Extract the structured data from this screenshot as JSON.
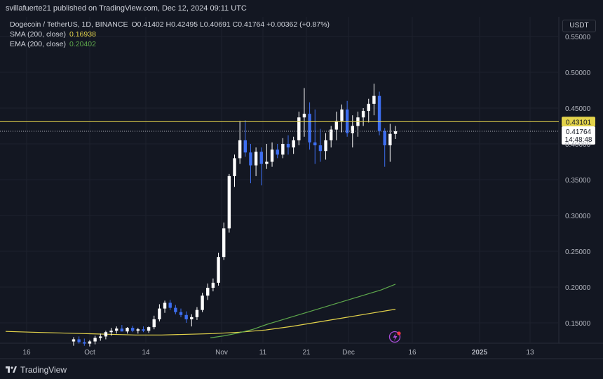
{
  "header": {
    "publish_text": "svillafuerte21 published on TradingView.com, Dec 12, 2024 09:11 UTC"
  },
  "legend": {
    "symbol": "Dogecoin / TetherUS, 1D, BINANCE",
    "ohlc": "O0.41402 H0.42495 L0.40691 C0.41764 +0.00362 (+0.87%)",
    "sma_label": "SMA (200, close)",
    "sma_value": "0.16938",
    "ema_label": "EMA (200, close)",
    "ema_value": "0.20402"
  },
  "currency_button": "USDT",
  "footer": {
    "brand": "TradingView"
  },
  "colors": {
    "background": "#131722",
    "up": "#ffffff",
    "down": "#3d6ef0",
    "sma": "#e3d34b",
    "ema": "#5ea84c",
    "level_line": "#e3d34b"
  },
  "chart_data": {
    "type": "candlestick",
    "ylim": [
      0.12,
      0.56
    ],
    "y_ticks": [
      0.15,
      0.2,
      0.25,
      0.3,
      0.35,
      0.4,
      0.45,
      0.5,
      0.55
    ],
    "y_tick_labels": [
      "0.15000",
      "0.20000",
      "0.25000",
      "0.30000",
      "0.35000",
      "0.40000",
      "0.45000",
      "0.50000",
      "0.55000"
    ],
    "x_tick_labels": [
      "16",
      "Oct",
      "14",
      "Nov",
      "11",
      "21",
      "Dec",
      "16",
      "2025",
      "13"
    ],
    "horizontal_level": {
      "value": 0.43101,
      "label": "0.43101"
    },
    "last_price": {
      "value": 0.41764,
      "label": "0.41764",
      "countdown": "14:48:48"
    },
    "candles": [
      {
        "o": 0.124,
        "h": 0.13,
        "l": 0.118,
        "c": 0.127
      },
      {
        "o": 0.127,
        "h": 0.131,
        "l": 0.121,
        "c": 0.123
      },
      {
        "o": 0.123,
        "h": 0.128,
        "l": 0.118,
        "c": 0.121
      },
      {
        "o": 0.121,
        "h": 0.126,
        "l": 0.117,
        "c": 0.124
      },
      {
        "o": 0.124,
        "h": 0.132,
        "l": 0.12,
        "c": 0.129
      },
      {
        "o": 0.129,
        "h": 0.135,
        "l": 0.125,
        "c": 0.131
      },
      {
        "o": 0.131,
        "h": 0.139,
        "l": 0.127,
        "c": 0.137
      },
      {
        "o": 0.137,
        "h": 0.143,
        "l": 0.132,
        "c": 0.139
      },
      {
        "o": 0.139,
        "h": 0.145,
        "l": 0.135,
        "c": 0.142
      },
      {
        "o": 0.142,
        "h": 0.147,
        "l": 0.138,
        "c": 0.138
      },
      {
        "o": 0.138,
        "h": 0.144,
        "l": 0.135,
        "c": 0.143
      },
      {
        "o": 0.143,
        "h": 0.146,
        "l": 0.137,
        "c": 0.139
      },
      {
        "o": 0.139,
        "h": 0.143,
        "l": 0.135,
        "c": 0.141
      },
      {
        "o": 0.141,
        "h": 0.145,
        "l": 0.137,
        "c": 0.139
      },
      {
        "o": 0.139,
        "h": 0.145,
        "l": 0.136,
        "c": 0.144
      },
      {
        "o": 0.144,
        "h": 0.16,
        "l": 0.141,
        "c": 0.155
      },
      {
        "o": 0.155,
        "h": 0.176,
        "l": 0.152,
        "c": 0.17
      },
      {
        "o": 0.17,
        "h": 0.181,
        "l": 0.164,
        "c": 0.178
      },
      {
        "o": 0.178,
        "h": 0.182,
        "l": 0.168,
        "c": 0.171
      },
      {
        "o": 0.171,
        "h": 0.175,
        "l": 0.162,
        "c": 0.165
      },
      {
        "o": 0.165,
        "h": 0.17,
        "l": 0.158,
        "c": 0.161
      },
      {
        "o": 0.161,
        "h": 0.166,
        "l": 0.15,
        "c": 0.155
      },
      {
        "o": 0.155,
        "h": 0.162,
        "l": 0.145,
        "c": 0.158
      },
      {
        "o": 0.158,
        "h": 0.172,
        "l": 0.154,
        "c": 0.168
      },
      {
        "o": 0.168,
        "h": 0.192,
        "l": 0.165,
        "c": 0.188
      },
      {
        "o": 0.188,
        "h": 0.205,
        "l": 0.182,
        "c": 0.199
      },
      {
        "o": 0.199,
        "h": 0.212,
        "l": 0.194,
        "c": 0.206
      },
      {
        "o": 0.206,
        "h": 0.248,
        "l": 0.202,
        "c": 0.242
      },
      {
        "o": 0.242,
        "h": 0.29,
        "l": 0.238,
        "c": 0.282
      },
      {
        "o": 0.282,
        "h": 0.358,
        "l": 0.276,
        "c": 0.355
      },
      {
        "o": 0.355,
        "h": 0.385,
        "l": 0.34,
        "c": 0.38
      },
      {
        "o": 0.38,
        "h": 0.432,
        "l": 0.372,
        "c": 0.405
      },
      {
        "o": 0.405,
        "h": 0.433,
        "l": 0.382,
        "c": 0.388
      },
      {
        "o": 0.388,
        "h": 0.4,
        "l": 0.345,
        "c": 0.37
      },
      {
        "o": 0.37,
        "h": 0.395,
        "l": 0.355,
        "c": 0.389
      },
      {
        "o": 0.389,
        "h": 0.395,
        "l": 0.342,
        "c": 0.372
      },
      {
        "o": 0.372,
        "h": 0.4,
        "l": 0.365,
        "c": 0.375
      },
      {
        "o": 0.375,
        "h": 0.402,
        "l": 0.368,
        "c": 0.392
      },
      {
        "o": 0.392,
        "h": 0.4,
        "l": 0.38,
        "c": 0.385
      },
      {
        "o": 0.385,
        "h": 0.408,
        "l": 0.38,
        "c": 0.4
      },
      {
        "o": 0.4,
        "h": 0.412,
        "l": 0.385,
        "c": 0.395
      },
      {
        "o": 0.395,
        "h": 0.41,
        "l": 0.386,
        "c": 0.405
      },
      {
        "o": 0.405,
        "h": 0.445,
        "l": 0.398,
        "c": 0.437
      },
      {
        "o": 0.437,
        "h": 0.478,
        "l": 0.41,
        "c": 0.442
      },
      {
        "o": 0.442,
        "h": 0.458,
        "l": 0.392,
        "c": 0.402
      },
      {
        "o": 0.402,
        "h": 0.448,
        "l": 0.372,
        "c": 0.398
      },
      {
        "o": 0.398,
        "h": 0.421,
        "l": 0.375,
        "c": 0.39
      },
      {
        "o": 0.39,
        "h": 0.415,
        "l": 0.378,
        "c": 0.405
      },
      {
        "o": 0.405,
        "h": 0.425,
        "l": 0.395,
        "c": 0.42
      },
      {
        "o": 0.42,
        "h": 0.445,
        "l": 0.405,
        "c": 0.432
      },
      {
        "o": 0.432,
        "h": 0.455,
        "l": 0.416,
        "c": 0.448
      },
      {
        "o": 0.448,
        "h": 0.46,
        "l": 0.41,
        "c": 0.415
      },
      {
        "o": 0.415,
        "h": 0.44,
        "l": 0.395,
        "c": 0.425
      },
      {
        "o": 0.425,
        "h": 0.445,
        "l": 0.41,
        "c": 0.437
      },
      {
        "o": 0.437,
        "h": 0.45,
        "l": 0.425,
        "c": 0.446
      },
      {
        "o": 0.446,
        "h": 0.463,
        "l": 0.43,
        "c": 0.456
      },
      {
        "o": 0.456,
        "h": 0.484,
        "l": 0.44,
        "c": 0.467
      },
      {
        "o": 0.467,
        "h": 0.473,
        "l": 0.412,
        "c": 0.418
      },
      {
        "o": 0.418,
        "h": 0.422,
        "l": 0.368,
        "c": 0.398
      },
      {
        "o": 0.398,
        "h": 0.428,
        "l": 0.375,
        "c": 0.414
      },
      {
        "o": 0.41402,
        "h": 0.42495,
        "l": 0.40691,
        "c": 0.41764
      }
    ],
    "series": [
      {
        "name": "SMA (200, close)",
        "color": "#e3d34b",
        "values": [
          0.138,
          0.137,
          0.136,
          0.135,
          0.134,
          0.133,
          0.133,
          0.134,
          0.135,
          0.137,
          0.14,
          0.145,
          0.151,
          0.157,
          0.163,
          0.169
        ]
      },
      {
        "name": "EMA (200, close)",
        "color": "#5ea84c",
        "values": [
          0.129,
          0.132,
          0.136,
          0.141,
          0.148,
          0.154,
          0.16,
          0.166,
          0.172,
          0.178,
          0.184,
          0.19,
          0.196,
          0.204
        ]
      }
    ]
  }
}
